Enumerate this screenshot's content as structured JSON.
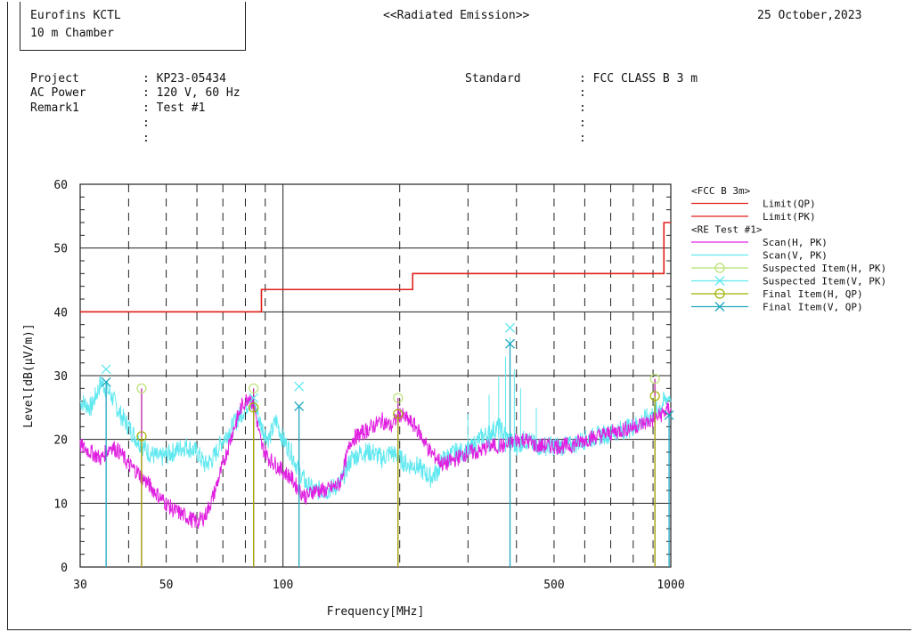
{
  "header": {
    "lab_name": "Eurofins KCTL",
    "chamber": "10 m Chamber",
    "report_title": "<<Radiated Emission>>",
    "date": "25 October,2023"
  },
  "info": {
    "project_label": "Project",
    "project_value": ": KP23-05434",
    "power_label": "AC Power",
    "power_value": ": 120 V, 60 Hz",
    "remark_label": "Remark1",
    "remark_value": ": Test #1",
    "blank1": ":",
    "blank2": ":",
    "standard_label": "Standard",
    "standard_value": ": FCC CLASS B 3 m",
    "std_blank1": ":",
    "std_blank2": ":",
    "std_blank3": ":",
    "std_blank4": ":"
  },
  "chart_data": {
    "type": "line",
    "xlabel": "Frequency[MHz]",
    "ylabel": "Level[dB(μV/m)]",
    "xscale": "log",
    "xlim": [
      30,
      1000
    ],
    "ylim": [
      0,
      60
    ],
    "x_ticks": [
      30,
      50,
      100,
      500,
      1000
    ],
    "x_tick_labels": [
      "30",
      "50",
      "100",
      "500",
      "1000"
    ],
    "y_ticks": [
      0,
      10,
      20,
      30,
      40,
      50,
      60
    ],
    "y_tick_labels": [
      "0",
      "10",
      "20",
      "30",
      "40",
      "50",
      "60"
    ],
    "grid": true,
    "legend_position": "right",
    "legend_groups": [
      {
        "title": "<FCC B 3m>",
        "entries": [
          {
            "name": "Limit(QP)",
            "color": "#e0201b",
            "marker": "line"
          },
          {
            "name": "Limit(PK)",
            "color": "#e0201b",
            "marker": "line"
          }
        ]
      },
      {
        "title": "<RE Test #1>",
        "entries": [
          {
            "name": "Scan(H, PK)",
            "color": "#e020e0",
            "marker": "line"
          },
          {
            "name": "Scan(V, PK)",
            "color": "#60e8f0",
            "marker": "line"
          },
          {
            "name": "Suspected Item(H, PK)",
            "color": "#b8e070",
            "marker": "circle"
          },
          {
            "name": "Suspected Item(V, PK)",
            "color": "#60e8f0",
            "marker": "x"
          },
          {
            "name": "Final Item(H, QP)",
            "color": "#a0b000",
            "marker": "circle"
          },
          {
            "name": "Final Item(V, QP)",
            "color": "#20a8c0",
            "marker": "x"
          }
        ]
      }
    ],
    "limit_qp": {
      "x": [
        30,
        88,
        88,
        216,
        216,
        960,
        960,
        1000
      ],
      "y": [
        40,
        40,
        43.5,
        43.5,
        46,
        46,
        54,
        54
      ]
    },
    "scan_h_pk": {
      "x": [
        30,
        32,
        34,
        36,
        38,
        40,
        42,
        45,
        48,
        52,
        56,
        60,
        63,
        66,
        70,
        74,
        78,
        82,
        85,
        88,
        92,
        96,
        100,
        105,
        110,
        115,
        120,
        130,
        140,
        150,
        160,
        170,
        180,
        190,
        200,
        210,
        220,
        230,
        240,
        250,
        260,
        280,
        300,
        320,
        340,
        360,
        380,
        400,
        420,
        450,
        500,
        550,
        600,
        700,
        800,
        900,
        1000
      ],
      "y": [
        19,
        18,
        17,
        19,
        18,
        16,
        15,
        13,
        11,
        9,
        8,
        7,
        8,
        11,
        16,
        21,
        25,
        27,
        24,
        19,
        17,
        16,
        15,
        14,
        12,
        11,
        12,
        12,
        13,
        20,
        21,
        22,
        23,
        22,
        24,
        23,
        22,
        20,
        18,
        17,
        16,
        17,
        18,
        18,
        19,
        19,
        19,
        20,
        20,
        19,
        19,
        19,
        20,
        21,
        22,
        23,
        25
      ]
    },
    "scan_v_pk": {
      "x": [
        30,
        32,
        34,
        36,
        38,
        40,
        42,
        45,
        48,
        52,
        56,
        60,
        63,
        66,
        70,
        74,
        78,
        82,
        85,
        88,
        92,
        96,
        100,
        105,
        110,
        115,
        120,
        130,
        140,
        150,
        160,
        170,
        180,
        190,
        200,
        210,
        220,
        230,
        240,
        250,
        260,
        280,
        300,
        320,
        340,
        360,
        380,
        400,
        420,
        450,
        500,
        550,
        600,
        700,
        800,
        900,
        1000
      ],
      "y": [
        26,
        25,
        29,
        27,
        24,
        22,
        20,
        18,
        17,
        18,
        19,
        18,
        16,
        17,
        20,
        22,
        24,
        26,
        25,
        22,
        20,
        23,
        20,
        18,
        15,
        13,
        12,
        12,
        13,
        17,
        18,
        18,
        17,
        18,
        17,
        16,
        16,
        15,
        14,
        15,
        17,
        18,
        18,
        20,
        21,
        22,
        20,
        19,
        20,
        19,
        19,
        19,
        20,
        21,
        22,
        24,
        27
      ]
    },
    "suspected_h_pk": {
      "x": [
        43.2,
        84,
        198,
        910
      ],
      "y": [
        28,
        28,
        26.5,
        29.5
      ]
    },
    "suspected_v_pk": {
      "x": [
        35,
        84,
        110,
        385
      ],
      "y": [
        31,
        26.5,
        28.3,
        37.5
      ]
    },
    "final_h_qp": {
      "x": [
        43.2,
        84,
        198,
        910
      ],
      "y": [
        20.5,
        25,
        24,
        26.8
      ]
    },
    "final_v_qp": {
      "x": [
        35,
        110,
        385,
        990
      ],
      "y": [
        29,
        25.2,
        35,
        23.8
      ]
    }
  },
  "colors": {
    "limit": "#e0201b",
    "scan_h": "#e020e0",
    "scan_v": "#60e8f0",
    "suspected_h": "#b8e070",
    "suspected_v": "#60e8f0",
    "final_h": "#a0b000",
    "final_v": "#20a8c0"
  }
}
